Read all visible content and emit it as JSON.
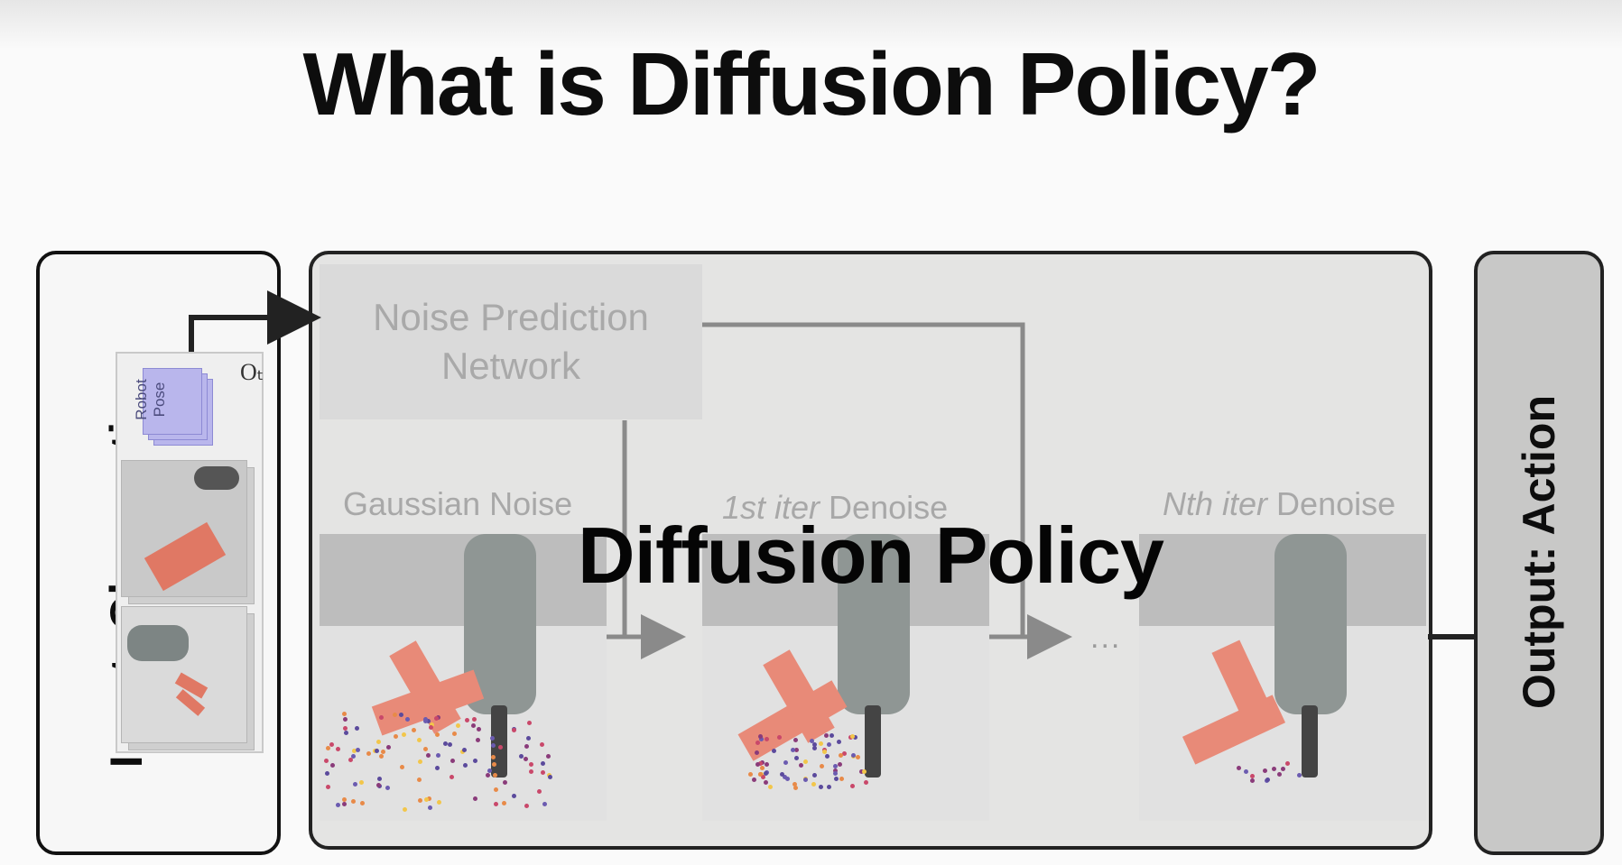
{
  "title": "What is Diffusion Policy?",
  "input_box": {
    "label": "Input: Observation",
    "pose_card_text": "Robot Pose",
    "observation_symbol": "Oₜ"
  },
  "output_box": {
    "label": "Output: Action"
  },
  "diffusion_box": {
    "overlay_label": "Diffusion Policy",
    "network_label": "Noise Prediction Network",
    "stages": [
      {
        "prefix": "",
        "text": "Gaussian Noise"
      },
      {
        "prefix": "1st iter",
        "text": " Denoise"
      },
      {
        "prefix": "Nth iter",
        "text": " Denoise"
      }
    ],
    "ellipsis": "..."
  },
  "colors": {
    "title": "#0d0d0d",
    "dimmed_text": "#a8a8a8",
    "t_block": "#e88a78",
    "pose_card": "#b9b6ec",
    "output_box": "#c8c8c7"
  }
}
